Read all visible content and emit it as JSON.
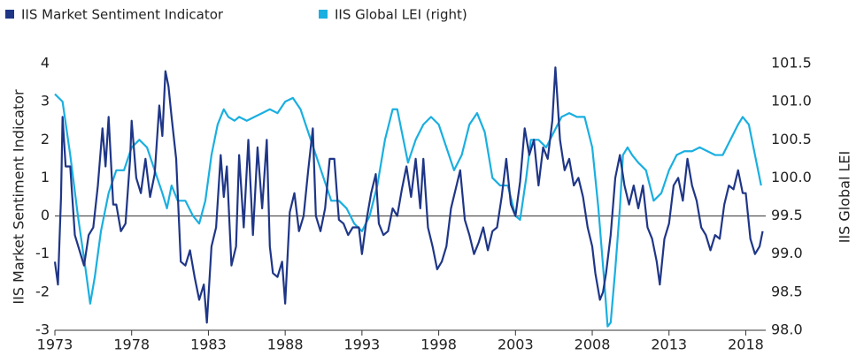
{
  "chart_data": {
    "type": "line",
    "ylabel": "IIS Market Sentiment Indicator",
    "y2label": "IIS Global LEI",
    "xlim": [
      1973,
      2019.3
    ],
    "xticks": [
      1973,
      1978,
      1983,
      1988,
      1993,
      1998,
      2003,
      2008,
      2013,
      2018
    ],
    "ylim": [
      -3,
      4
    ],
    "yticks": [
      -3,
      -2,
      -1,
      0,
      1,
      2,
      3,
      4
    ],
    "y2lim": [
      98,
      101.5
    ],
    "y2ticks": [
      {
        "value": 98,
        "label": "98.0"
      },
      98.5,
      {
        "value": 99,
        "label": "99.0"
      },
      99.5,
      {
        "value": 100,
        "label": "100.0"
      },
      100.5,
      {
        "value": 101,
        "label": "101.0"
      },
      101.5
    ],
    "zero_line": true,
    "series": [
      {
        "name": "IIS Market Sentiment Indicator",
        "color": "#1f3687",
        "x": [
          1973.0,
          1973.2,
          1973.4,
          1973.5,
          1973.7,
          1974.0,
          1974.3,
          1974.6,
          1974.9,
          1975.2,
          1975.5,
          1975.8,
          1976.1,
          1976.3,
          1976.5,
          1976.8,
          1977.0,
          1977.3,
          1977.6,
          1977.9,
          1978.0,
          1978.3,
          1978.6,
          1978.9,
          1979.2,
          1979.5,
          1979.8,
          1980.0,
          1980.2,
          1980.4,
          1980.6,
          1980.9,
          1981.2,
          1981.5,
          1981.8,
          1982.1,
          1982.4,
          1982.7,
          1982.9,
          1983.2,
          1983.5,
          1983.8,
          1984.0,
          1984.2,
          1984.5,
          1984.8,
          1985.0,
          1985.3,
          1985.6,
          1985.9,
          1986.2,
          1986.5,
          1986.8,
          1987.0,
          1987.2,
          1987.5,
          1987.8,
          1988.0,
          1988.3,
          1988.6,
          1988.9,
          1989.2,
          1989.5,
          1989.8,
          1990.0,
          1990.3,
          1990.6,
          1990.9,
          1991.2,
          1991.5,
          1991.8,
          1992.1,
          1992.4,
          1992.8,
          1993.0,
          1993.3,
          1993.6,
          1993.9,
          1994.1,
          1994.4,
          1994.7,
          1995.0,
          1995.3,
          1995.6,
          1995.9,
          1996.2,
          1996.5,
          1996.8,
          1997.0,
          1997.3,
          1997.6,
          1997.9,
          1998.2,
          1998.5,
          1998.8,
          1999.1,
          1999.4,
          1999.7,
          2000.0,
          2000.3,
          2000.6,
          2000.9,
          2001.2,
          2001.5,
          2001.8,
          2002.1,
          2002.4,
          2002.7,
          2003.0,
          2003.3,
          2003.6,
          2003.9,
          2004.2,
          2004.5,
          2004.8,
          2005.1,
          2005.4,
          2005.6,
          2005.9,
          2006.2,
          2006.5,
          2006.8,
          2007.1,
          2007.4,
          2007.7,
          2008.0,
          2008.2,
          2008.5,
          2008.7,
          2008.9,
          2009.2,
          2009.5,
          2009.8,
          2010.1,
          2010.4,
          2010.7,
          2011.0,
          2011.3,
          2011.6,
          2011.9,
          2012.2,
          2012.4,
          2012.7,
          2013.0,
          2013.3,
          2013.6,
          2013.9,
          2014.2,
          2014.5,
          2014.8,
          2015.1,
          2015.4,
          2015.7,
          2016.0,
          2016.3,
          2016.6,
          2016.9,
          2017.2,
          2017.5,
          2017.8,
          2018.0,
          2018.3,
          2018.6,
          2018.9,
          2019.1
        ],
        "values": [
          -1.2,
          -1.8,
          0.5,
          2.6,
          1.3,
          1.3,
          -0.5,
          -0.9,
          -1.3,
          -0.5,
          -0.3,
          0.8,
          2.3,
          1.3,
          2.6,
          0.3,
          0.3,
          -0.4,
          -0.2,
          1.5,
          2.5,
          1.0,
          0.6,
          1.5,
          0.5,
          1.1,
          2.9,
          2.1,
          3.8,
          3.4,
          2.6,
          1.5,
          -1.2,
          -1.3,
          -0.9,
          -1.6,
          -2.2,
          -1.8,
          -2.8,
          -0.8,
          -0.3,
          1.6,
          0.5,
          1.3,
          -1.3,
          -0.8,
          1.6,
          -0.3,
          2.0,
          -0.5,
          1.8,
          0.2,
          2.0,
          -0.8,
          -1.5,
          -1.6,
          -1.2,
          -2.3,
          0.1,
          0.6,
          -0.4,
          0.0,
          1.2,
          2.3,
          0.0,
          -0.4,
          0.2,
          1.5,
          1.5,
          -0.1,
          -0.2,
          -0.5,
          -0.3,
          -0.3,
          -1.0,
          -0.1,
          0.6,
          1.1,
          -0.2,
          -0.5,
          -0.4,
          0.2,
          0.0,
          0.7,
          1.3,
          0.5,
          1.5,
          0.2,
          1.5,
          -0.3,
          -0.8,
          -1.4,
          -1.2,
          -0.8,
          0.2,
          0.7,
          1.2,
          -0.1,
          -0.5,
          -1.0,
          -0.7,
          -0.3,
          -0.9,
          -0.4,
          -0.3,
          0.5,
          1.5,
          0.3,
          0.0,
          0.9,
          2.3,
          1.6,
          2.0,
          0.8,
          1.8,
          1.5,
          2.5,
          3.9,
          2.0,
          1.2,
          1.5,
          0.8,
          1.0,
          0.5,
          -0.3,
          -0.8,
          -1.5,
          -2.2,
          -2.0,
          -1.5,
          -0.5,
          1.0,
          1.6,
          0.8,
          0.3,
          0.8,
          0.2,
          0.8,
          -0.3,
          -0.6,
          -1.2,
          -1.8,
          -0.6,
          -0.2,
          0.8,
          1.0,
          0.4,
          1.5,
          0.8,
          0.4,
          -0.3,
          -0.5,
          -0.9,
          -0.5,
          -0.6,
          0.3,
          0.8,
          0.7,
          1.2,
          0.6,
          0.6,
          -0.6,
          -1.0,
          -0.8,
          -0.4
        ]
      },
      {
        "name": "IIS Global LEI (right)",
        "color": "#1aafe0",
        "axis": "y2",
        "x": [
          1973.0,
          1973.5,
          1974.0,
          1974.5,
          1975.0,
          1975.3,
          1975.6,
          1976.0,
          1976.5,
          1977.0,
          1977.5,
          1978.0,
          1978.5,
          1979.0,
          1979.5,
          1980.0,
          1980.3,
          1980.6,
          1981.0,
          1981.5,
          1982.0,
          1982.4,
          1982.8,
          1983.2,
          1983.6,
          1984.0,
          1984.3,
          1984.7,
          1985.0,
          1985.5,
          1986.0,
          1986.5,
          1987.0,
          1987.5,
          1988.0,
          1988.5,
          1989.0,
          1989.5,
          1990.0,
          1990.5,
          1991.0,
          1991.5,
          1992.0,
          1992.5,
          1993.0,
          1993.5,
          1994.0,
          1994.5,
          1995.0,
          1995.3,
          1995.7,
          1996.0,
          1996.5,
          1997.0,
          1997.5,
          1998.0,
          1998.5,
          1999.0,
          1999.5,
          2000.0,
          2000.5,
          2001.0,
          2001.5,
          2002.0,
          2002.5,
          2003.0,
          2003.3,
          2003.7,
          2004.0,
          2004.5,
          2005.0,
          2005.5,
          2006.0,
          2006.5,
          2007.0,
          2007.5,
          2008.0,
          2008.4,
          2008.8,
          2009.0,
          2009.2,
          2009.5,
          2009.8,
          2010.0,
          2010.3,
          2010.6,
          2011.0,
          2011.5,
          2012.0,
          2012.5,
          2013.0,
          2013.5,
          2014.0,
          2014.5,
          2015.0,
          2015.5,
          2016.0,
          2016.5,
          2017.0,
          2017.5,
          2017.8,
          2018.2,
          2018.6,
          2019.0
        ],
        "values": [
          101.1,
          101.0,
          100.3,
          99.5,
          98.8,
          98.35,
          98.7,
          99.3,
          99.8,
          100.1,
          100.1,
          100.4,
          100.5,
          100.4,
          100.1,
          99.8,
          99.6,
          99.9,
          99.7,
          99.7,
          99.5,
          99.4,
          99.7,
          100.3,
          100.7,
          100.9,
          100.8,
          100.75,
          100.8,
          100.75,
          100.8,
          100.85,
          100.9,
          100.85,
          101.0,
          101.05,
          100.9,
          100.6,
          100.3,
          100.0,
          99.7,
          99.7,
          99.6,
          99.4,
          99.3,
          99.5,
          99.9,
          100.5,
          100.9,
          100.9,
          100.5,
          100.2,
          100.5,
          100.7,
          100.8,
          100.7,
          100.4,
          100.1,
          100.3,
          100.7,
          100.85,
          100.6,
          100.0,
          99.9,
          99.9,
          99.5,
          99.45,
          100.0,
          100.5,
          100.5,
          100.4,
          100.6,
          100.8,
          100.85,
          100.8,
          100.8,
          100.4,
          99.6,
          98.6,
          98.05,
          98.1,
          98.8,
          99.6,
          100.3,
          100.4,
          100.3,
          100.2,
          100.1,
          99.7,
          99.8,
          100.1,
          100.3,
          100.35,
          100.35,
          100.4,
          100.35,
          100.3,
          100.3,
          100.5,
          100.7,
          100.8,
          100.7,
          100.3,
          99.9
        ]
      }
    ]
  }
}
